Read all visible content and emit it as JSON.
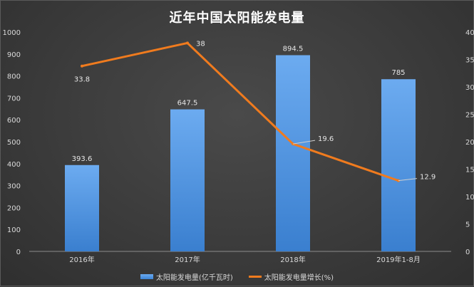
{
  "chart_data": {
    "type": "bar",
    "title": "近年中国太阳能发电量",
    "categories": [
      "2016年",
      "2017年",
      "2018年",
      "2019年1-8月"
    ],
    "series": [
      {
        "name": "太阳能发电量(亿千瓦时)",
        "type": "bar",
        "axis": "left",
        "values": [
          393.6,
          647.5,
          894.5,
          785
        ],
        "labels": [
          "393.6",
          "647.5",
          "894.5",
          "785"
        ],
        "color": "#5b9bd5"
      },
      {
        "name": "太阳能发电量增长(%)",
        "type": "line",
        "axis": "right",
        "values": [
          33.8,
          38,
          19.6,
          12.9
        ],
        "labels": [
          "33.8",
          "38",
          "19.6",
          "12.9"
        ],
        "color": "#f07b1e"
      }
    ],
    "ylim_left": [
      0,
      1000
    ],
    "ylim_right": [
      0,
      40
    ],
    "left_ticks": [
      "0",
      "100",
      "200",
      "300",
      "400",
      "500",
      "600",
      "700",
      "800",
      "900",
      "1000"
    ],
    "right_ticks": [
      "0",
      "5",
      "10",
      "15",
      "20",
      "25",
      "30",
      "35",
      "40"
    ],
    "grid": false,
    "legend_position": "bottom"
  }
}
